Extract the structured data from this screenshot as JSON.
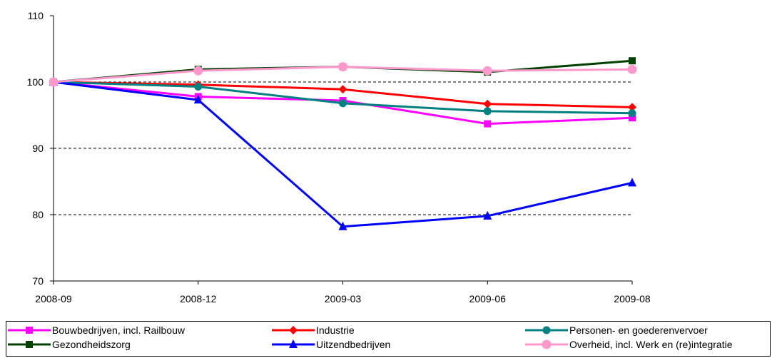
{
  "chart_data": {
    "type": "line",
    "title": "",
    "xlabel": "",
    "ylabel": "",
    "categories": [
      "2008-09",
      "2008-12",
      "2009-03",
      "2009-06",
      "2009-08"
    ],
    "ylim": [
      70,
      110
    ],
    "yticks": [
      "70",
      "80",
      "90",
      "100",
      "110"
    ],
    "grid": "dashed horizontal at 80, 90, 100",
    "legend_position": "bottom",
    "series": [
      {
        "name": "Bouwbedrijven, incl. Railbouw",
        "color": "#FF00FF",
        "marker": "square",
        "values": [
          100,
          97.8,
          97.2,
          93.7,
          94.6
        ]
      },
      {
        "name": "Industrie",
        "color": "#FF0000",
        "marker": "diamond",
        "values": [
          100,
          99.6,
          98.9,
          96.7,
          96.2
        ]
      },
      {
        "name": "Personen- en goederenvervoer",
        "color": "#008080",
        "marker": "circle",
        "values": [
          100,
          99.3,
          96.8,
          95.6,
          95.3
        ]
      },
      {
        "name": "Gezondheidszorg",
        "color": "#004000",
        "marker": "square",
        "values": [
          100,
          101.9,
          102.3,
          101.5,
          103.2
        ]
      },
      {
        "name": "Uitzendbedrijven",
        "color": "#0000FF",
        "marker": "triangle",
        "values": [
          100,
          97.3,
          78.2,
          79.8,
          84.8
        ]
      },
      {
        "name": "Overheid, incl. Werk en (re)integratie",
        "color": "#FF99CC",
        "marker": "circle",
        "values": [
          100,
          101.7,
          102.3,
          101.7,
          101.9
        ]
      }
    ]
  }
}
